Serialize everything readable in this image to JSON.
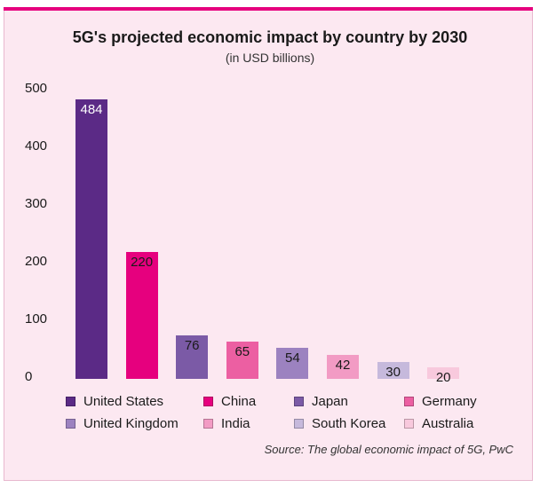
{
  "chart_data": {
    "type": "bar",
    "title": "5G's projected economic impact by country by 2030",
    "subtitle": "(in USD billions)",
    "categories": [
      "United States",
      "China",
      "Japan",
      "Germany",
      "United Kingdom",
      "India",
      "South Korea",
      "Australia"
    ],
    "values": [
      484,
      220,
      76,
      65,
      54,
      42,
      30,
      20
    ],
    "colors": [
      "#5b2a86",
      "#e6007e",
      "#7b5aa6",
      "#ec5fa2",
      "#9c82c0",
      "#f29bc4",
      "#c6b9dc",
      "#f8c9dd"
    ],
    "label_colors": [
      "#ffffff",
      "#1a1a1a",
      "#1a1a1a",
      "#1a1a1a",
      "#1a1a1a",
      "#1a1a1a",
      "#1a1a1a",
      "#1a1a1a"
    ],
    "yticks": [
      0,
      100,
      200,
      300,
      400,
      500
    ],
    "ylim": [
      0,
      500
    ],
    "xlabel": "",
    "ylabel": "",
    "grid": false,
    "legend_placement": "bottom",
    "legend_order": [
      "United States",
      "China",
      "Japan",
      "Germany",
      "United Kingdom",
      "India",
      "South Korea",
      "Australia"
    ]
  },
  "source": "Source:  The global economic impact of 5G, PwC"
}
